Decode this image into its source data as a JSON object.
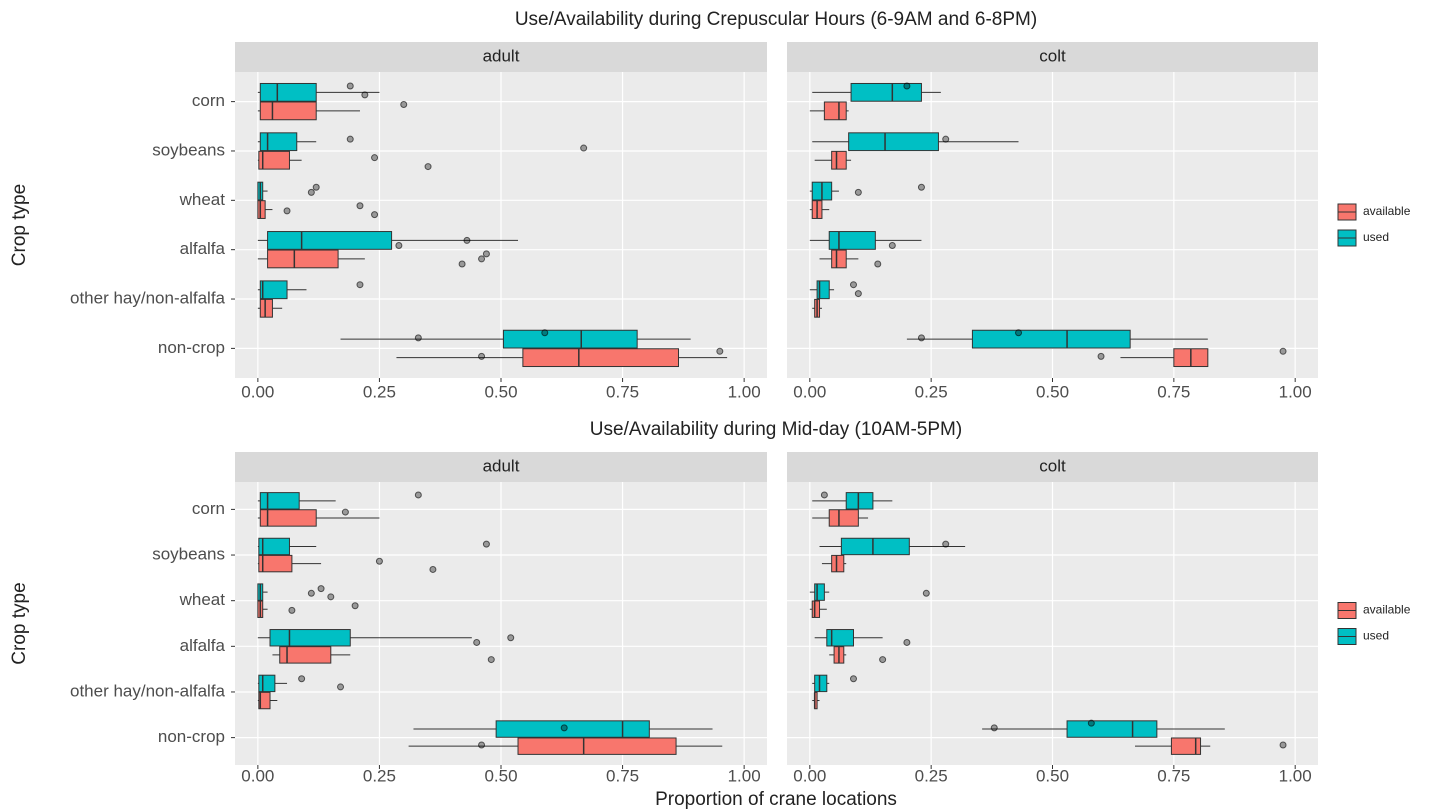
{
  "chart_data": [
    {
      "type": "boxplot",
      "title": "Use/Availability during Crepuscular Hours (6-9AM and 6-8PM)",
      "y_label": "Crop type",
      "categories": [
        "corn",
        "soybeans",
        "wheat",
        "alfalfa",
        "other hay/non-alfalfa",
        "non-crop"
      ],
      "xlim": [
        -0.047,
        1.047
      ],
      "xticks": [
        {
          "value": 0,
          "label": "0.00"
        },
        {
          "value": 0.25,
          "label": "0.25"
        },
        {
          "value": 0.5,
          "label": "0.50"
        },
        {
          "value": 0.75,
          "label": "0.75"
        },
        {
          "value": 1,
          "label": "1.00"
        }
      ],
      "grid": true,
      "legend_position": "right",
      "series": [
        {
          "name": "available",
          "color": "#f8766d"
        },
        {
          "name": "used",
          "color": "#00bfc4"
        }
      ],
      "facets": [
        {
          "strip": "adult",
          "groups": [
            [
              {
                "min": 0,
                "q1": 0.005,
                "median": 0.03,
                "q3": 0.12,
                "max": 0.21,
                "points": [
                  0.3
                ]
              },
              {
                "min": 0,
                "q1": 0.002,
                "median": 0.01,
                "q3": 0.065,
                "max": 0.09,
                "points": [
                  0.24,
                  0.35
                ]
              },
              {
                "min": 0,
                "q1": 0,
                "median": 0.005,
                "q3": 0.015,
                "max": 0.03,
                "points": [
                  0.06,
                  0.21,
                  0.24
                ]
              },
              {
                "min": 0,
                "q1": 0.02,
                "median": 0.075,
                "q3": 0.165,
                "max": 0.22,
                "points": [
                  0.42,
                  0.46,
                  0.47
                ]
              },
              {
                "min": 0,
                "q1": 0.005,
                "median": 0.015,
                "q3": 0.03,
                "max": 0.05,
                "points": []
              },
              {
                "min": 0.285,
                "q1": 0.545,
                "median": 0.66,
                "q3": 0.865,
                "max": 0.965,
                "points": [
                  0.46,
                  0.95
                ]
              }
            ],
            [
              {
                "min": 0,
                "q1": 0.005,
                "median": 0.04,
                "q3": 0.12,
                "max": 0.25,
                "points": [
                  0.19,
                  0.22
                ]
              },
              {
                "min": 0,
                "q1": 0.005,
                "median": 0.02,
                "q3": 0.08,
                "max": 0.12,
                "points": [
                  0.19,
                  0.67
                ]
              },
              {
                "min": 0,
                "q1": 0,
                "median": 0.005,
                "q3": 0.01,
                "max": 0.02,
                "points": [
                  0.11,
                  0.12
                ]
              },
              {
                "min": 0,
                "q1": 0.02,
                "median": 0.09,
                "q3": 0.275,
                "max": 0.535,
                "points": [
                  0.29,
                  0.43
                ]
              },
              {
                "min": 0,
                "q1": 0.005,
                "median": 0.01,
                "q3": 0.06,
                "max": 0.1,
                "points": [
                  0.21
                ]
              },
              {
                "min": 0.17,
                "q1": 0.505,
                "median": 0.665,
                "q3": 0.78,
                "max": 0.89,
                "points": [
                  0.33,
                  0.59
                ]
              }
            ]
          ]
        },
        {
          "strip": "colt",
          "groups": [
            [
              {
                "min": 0,
                "q1": 0.03,
                "median": 0.06,
                "q3": 0.075,
                "max": 0.08,
                "points": []
              },
              {
                "min": 0.01,
                "q1": 0.045,
                "median": 0.055,
                "q3": 0.075,
                "max": 0.085,
                "points": []
              },
              {
                "min": 0,
                "q1": 0.005,
                "median": 0.015,
                "q3": 0.025,
                "max": 0.04,
                "points": []
              },
              {
                "min": 0.02,
                "q1": 0.045,
                "median": 0.055,
                "q3": 0.075,
                "max": 0.1,
                "points": [
                  0.14
                ]
              },
              {
                "min": 0.005,
                "q1": 0.01,
                "median": 0.015,
                "q3": 0.02,
                "max": 0.025,
                "points": []
              },
              {
                "min": 0.64,
                "q1": 0.75,
                "median": 0.785,
                "q3": 0.82,
                "max": 0.82,
                "points": [
                  0.6,
                  0.975
                ]
              }
            ],
            [
              {
                "min": 0.005,
                "q1": 0.085,
                "median": 0.17,
                "q3": 0.23,
                "max": 0.27,
                "points": [
                  0.2
                ]
              },
              {
                "min": 0.005,
                "q1": 0.08,
                "median": 0.155,
                "q3": 0.265,
                "max": 0.43,
                "points": [
                  0.28
                ]
              },
              {
                "min": 0,
                "q1": 0.005,
                "median": 0.025,
                "q3": 0.045,
                "max": 0.06,
                "points": [
                  0.1,
                  0.23
                ]
              },
              {
                "min": 0,
                "q1": 0.04,
                "median": 0.06,
                "q3": 0.135,
                "max": 0.23,
                "points": [
                  0.17
                ]
              },
              {
                "min": 0,
                "q1": 0.015,
                "median": 0.02,
                "q3": 0.04,
                "max": 0.05,
                "points": [
                  0.09,
                  0.1
                ]
              },
              {
                "min": 0.2,
                "q1": 0.335,
                "median": 0.53,
                "q3": 0.66,
                "max": 0.82,
                "points": [
                  0.23,
                  0.43
                ]
              }
            ]
          ]
        }
      ]
    },
    {
      "type": "boxplot",
      "title": "Use/Availability during Mid-day (10AM-5PM)",
      "y_label": "Crop type",
      "x_label": "Proportion of crane locations",
      "categories": [
        "corn",
        "soybeans",
        "wheat",
        "alfalfa",
        "other hay/non-alfalfa",
        "non-crop"
      ],
      "xlim": [
        -0.047,
        1.047
      ],
      "xticks": [
        {
          "value": 0,
          "label": "0.00"
        },
        {
          "value": 0.25,
          "label": "0.25"
        },
        {
          "value": 0.5,
          "label": "0.50"
        },
        {
          "value": 0.75,
          "label": "0.75"
        },
        {
          "value": 1,
          "label": "1.00"
        }
      ],
      "grid": true,
      "legend_position": "right",
      "series": [
        {
          "name": "available",
          "color": "#f8766d"
        },
        {
          "name": "used",
          "color": "#00bfc4"
        }
      ],
      "facets": [
        {
          "strip": "adult",
          "groups": [
            [
              {
                "min": 0,
                "q1": 0.005,
                "median": 0.02,
                "q3": 0.12,
                "max": 0.25,
                "points": [
                  0.18
                ]
              },
              {
                "min": 0,
                "q1": 0.002,
                "median": 0.01,
                "q3": 0.07,
                "max": 0.13,
                "points": [
                  0.25,
                  0.36
                ]
              },
              {
                "min": 0,
                "q1": 0,
                "median": 0.005,
                "q3": 0.01,
                "max": 0.02,
                "points": [
                  0.07,
                  0.2
                ]
              },
              {
                "min": 0.03,
                "q1": 0.045,
                "median": 0.06,
                "q3": 0.15,
                "max": 0.19,
                "points": [
                  0.48
                ]
              },
              {
                "min": 0,
                "q1": 0.002,
                "median": 0.005,
                "q3": 0.025,
                "max": 0.04,
                "points": []
              },
              {
                "min": 0.31,
                "q1": 0.535,
                "median": 0.67,
                "q3": 0.86,
                "max": 0.955,
                "points": [
                  0.46
                ]
              }
            ],
            [
              {
                "min": 0,
                "q1": 0.005,
                "median": 0.02,
                "q3": 0.085,
                "max": 0.16,
                "points": [
                  0.33
                ]
              },
              {
                "min": 0,
                "q1": 0.002,
                "median": 0.01,
                "q3": 0.065,
                "max": 0.12,
                "points": [
                  0.47
                ]
              },
              {
                "min": 0,
                "q1": 0,
                "median": 0.005,
                "q3": 0.01,
                "max": 0.02,
                "points": [
                  0.11,
                  0.13,
                  0.15
                ]
              },
              {
                "min": 0,
                "q1": 0.025,
                "median": 0.065,
                "q3": 0.19,
                "max": 0.44,
                "points": [
                  0.45,
                  0.52
                ]
              },
              {
                "min": 0,
                "q1": 0.002,
                "median": 0.01,
                "q3": 0.035,
                "max": 0.06,
                "points": [
                  0.09,
                  0.17
                ]
              },
              {
                "min": 0.32,
                "q1": 0.49,
                "median": 0.75,
                "q3": 0.805,
                "max": 0.935,
                "points": [
                  0.63
                ]
              }
            ]
          ]
        },
        {
          "strip": "colt",
          "groups": [
            [
              {
                "min": 0.005,
                "q1": 0.04,
                "median": 0.06,
                "q3": 0.1,
                "max": 0.12,
                "points": []
              },
              {
                "min": 0.025,
                "q1": 0.045,
                "median": 0.055,
                "q3": 0.07,
                "max": 0.075,
                "points": []
              },
              {
                "min": 0,
                "q1": 0.005,
                "median": 0.01,
                "q3": 0.02,
                "max": 0.035,
                "points": []
              },
              {
                "min": 0.04,
                "q1": 0.05,
                "median": 0.06,
                "q3": 0.07,
                "max": 0.075,
                "points": [
                  0.15
                ]
              },
              {
                "min": 0.005,
                "q1": 0.01,
                "median": 0.01,
                "q3": 0.015,
                "max": 0.02,
                "points": []
              },
              {
                "min": 0.67,
                "q1": 0.745,
                "median": 0.795,
                "q3": 0.805,
                "max": 0.825,
                "points": [
                  0.975
                ]
              }
            ],
            [
              {
                "min": 0.005,
                "q1": 0.075,
                "median": 0.1,
                "q3": 0.13,
                "max": 0.17,
                "points": [
                  0.03
                ]
              },
              {
                "min": 0.02,
                "q1": 0.065,
                "median": 0.13,
                "q3": 0.205,
                "max": 0.32,
                "points": [
                  0.28
                ]
              },
              {
                "min": 0,
                "q1": 0.01,
                "median": 0.015,
                "q3": 0.03,
                "max": 0.04,
                "points": [
                  0.24
                ]
              },
              {
                "min": 0.01,
                "q1": 0.035,
                "median": 0.045,
                "q3": 0.09,
                "max": 0.15,
                "points": [
                  0.2
                ]
              },
              {
                "min": 0.005,
                "q1": 0.01,
                "median": 0.02,
                "q3": 0.035,
                "max": 0.04,
                "points": [
                  0.09
                ]
              },
              {
                "min": 0.355,
                "q1": 0.53,
                "median": 0.665,
                "q3": 0.715,
                "max": 0.855,
                "points": [
                  0.38,
                  0.58
                ]
              }
            ]
          ]
        }
      ]
    }
  ]
}
